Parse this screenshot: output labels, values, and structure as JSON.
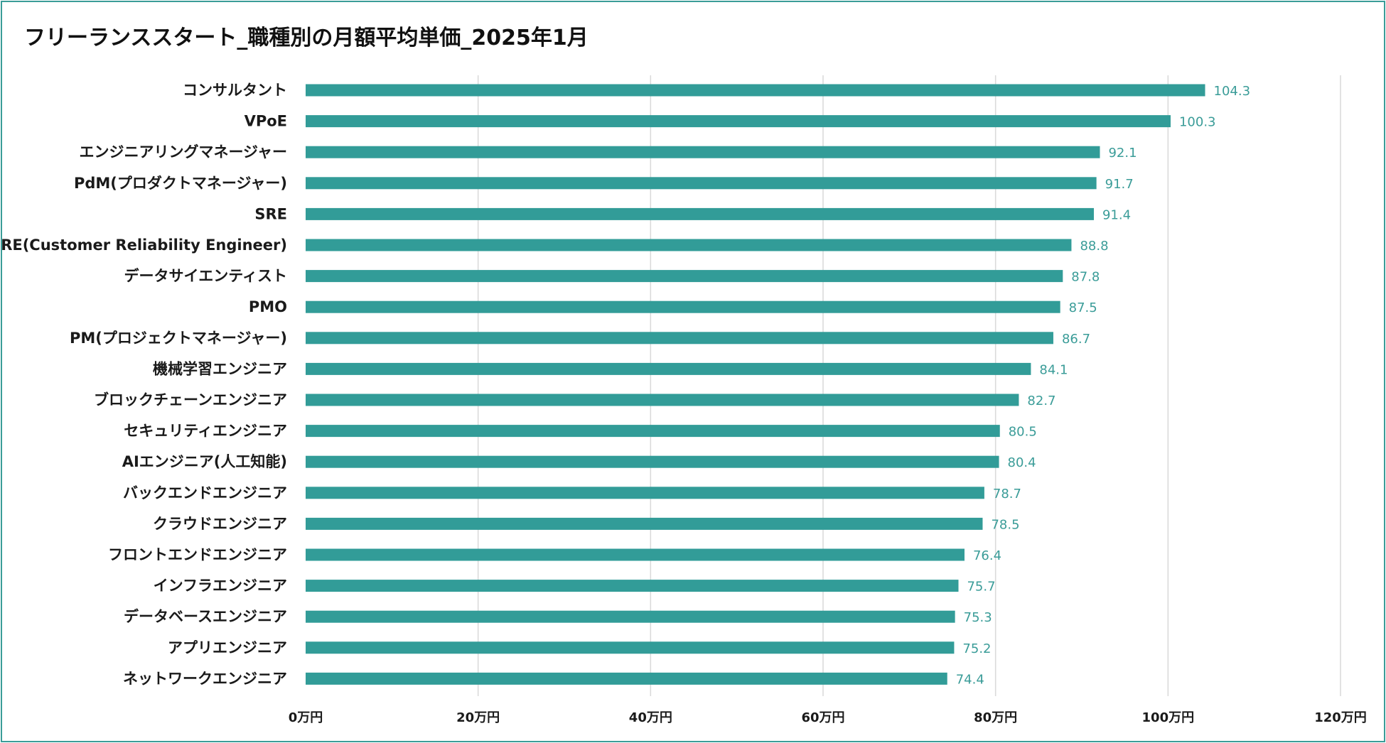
{
  "chart_data": {
    "type": "bar",
    "orientation": "horizontal",
    "title": "フリーランススタート_職種別の月額平均単価_2025年1月",
    "xlabel": "",
    "ylabel": "",
    "xlim": [
      0,
      120
    ],
    "x_ticks": [
      0,
      20,
      40,
      60,
      80,
      100,
      120
    ],
    "x_tick_labels": [
      "0万円",
      "20万円",
      "40万円",
      "60万円",
      "80万円",
      "100万円",
      "120万円"
    ],
    "grid": true,
    "bar_color": "#329c98",
    "label_color": "#3a9c98",
    "categories": [
      "コンサルタント",
      "VPoE",
      "エンジニアリングマネージャー",
      "PdM(プロダクトマネージャー)",
      "SRE",
      "CRE(Customer Reliability Engineer)",
      "データサイエンティスト",
      "PMO",
      "PM(プロジェクトマネージャー)",
      "機械学習エンジニア",
      "ブロックチェーンエンジニア",
      "セキュリティエンジニア",
      "AIエンジニア(人工知能)",
      "バックエンドエンジニア",
      "クラウドエンジニア",
      "フロントエンドエンジニア",
      "インフラエンジニア",
      "データベースエンジニア",
      "アプリエンジニア",
      "ネットワークエンジニア"
    ],
    "values": [
      104.3,
      100.3,
      92.1,
      91.7,
      91.4,
      88.8,
      87.8,
      87.5,
      86.7,
      84.1,
      82.7,
      80.5,
      80.4,
      78.7,
      78.5,
      76.4,
      75.7,
      75.3,
      75.2,
      74.4
    ],
    "value_labels": [
      "104.3",
      "100.3",
      "92.1",
      "91.7",
      "91.4",
      "88.8",
      "87.8",
      "87.5",
      "86.7",
      "84.1",
      "82.7",
      "80.5",
      "80.4",
      "78.7",
      "78.5",
      "76.4",
      "75.7",
      "75.3",
      "75.2",
      "74.4"
    ]
  }
}
